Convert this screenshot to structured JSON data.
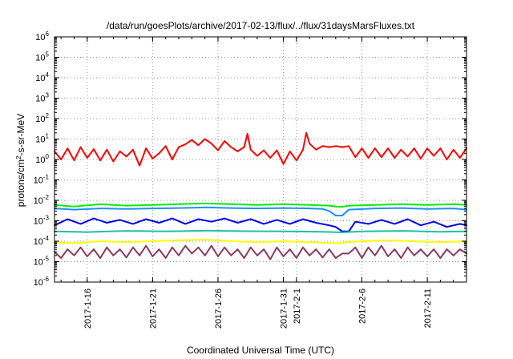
{
  "chart_data": {
    "type": "line",
    "title": "/data/run/goesPlots/archive/2017-02-13/flux/../flux/31daysMarsFluxes.txt",
    "xlabel": "Coordinated Universal Time (UTC)",
    "ylabel": {
      "pre": "protons/cm",
      "sup": "2",
      "post": "-s-sr-MeV"
    },
    "xlim": [
      "2017-01-13T12:00",
      "2017-02-14T00:00"
    ],
    "ylim": [
      1e-06,
      1000000.0
    ],
    "yscale": "log",
    "grid": true,
    "x_ticks": [
      {
        "date": "2017-01-16",
        "label": "2017-1-16"
      },
      {
        "date": "2017-01-21",
        "label": "2017-1-21"
      },
      {
        "date": "2017-01-26",
        "label": "2017-1-26"
      },
      {
        "date": "2017-01-31",
        "label": "2017-1-31"
      },
      {
        "date": "2017-02-01",
        "label": "2017-2-1"
      },
      {
        "date": "2017-02-06",
        "label": "2017-2-6"
      },
      {
        "date": "2017-02-11",
        "label": "2017-2-11"
      }
    ],
    "y_ticks": [
      {
        "value": 1e-06,
        "base": "10",
        "exp": "-6"
      },
      {
        "value": 1e-05,
        "base": "10",
        "exp": "-5"
      },
      {
        "value": 0.0001,
        "base": "10",
        "exp": "-4"
      },
      {
        "value": 0.001,
        "base": "10",
        "exp": "-3"
      },
      {
        "value": 0.01,
        "base": "10",
        "exp": "-2"
      },
      {
        "value": 0.1,
        "base": "10",
        "exp": "-1"
      },
      {
        "value": 1,
        "base": "10",
        "exp": "0"
      },
      {
        "value": 10.0,
        "base": "10",
        "exp": "1"
      },
      {
        "value": 100.0,
        "base": "10",
        "exp": "2"
      },
      {
        "value": 1000.0,
        "base": "10",
        "exp": "3"
      },
      {
        "value": 10000.0,
        "base": "10",
        "exp": "4"
      },
      {
        "value": 100000.0,
        "base": "10",
        "exp": "5"
      },
      {
        "value": 1000000.0,
        "base": "10",
        "exp": "6"
      }
    ],
    "series": [
      {
        "color": "#ff0000",
        "x": [
          "2017-01-13T12:00",
          "2017-01-14T00:00",
          "2017-01-14T12:00",
          "2017-01-15T00:00",
          "2017-01-15T12:00",
          "2017-01-16T00:00",
          "2017-01-16T12:00",
          "2017-01-17T00:00",
          "2017-01-17T12:00",
          "2017-01-18T00:00",
          "2017-01-18T12:00",
          "2017-01-19T00:00",
          "2017-01-19T12:00",
          "2017-01-20T00:00",
          "2017-01-20T12:00",
          "2017-01-21T00:00",
          "2017-01-21T12:00",
          "2017-01-22T00:00",
          "2017-01-22T12:00",
          "2017-01-23T00:00",
          "2017-01-23T12:00",
          "2017-01-24T00:00",
          "2017-01-24T12:00",
          "2017-01-25T00:00",
          "2017-01-25T12:00",
          "2017-01-26T00:00",
          "2017-01-26T12:00",
          "2017-01-27T00:00",
          "2017-01-27T12:00",
          "2017-01-28T00:00",
          "2017-01-28T06:00",
          "2017-01-28T12:00",
          "2017-01-29T00:00",
          "2017-01-29T12:00",
          "2017-01-30T00:00",
          "2017-01-30T12:00",
          "2017-01-31T00:00",
          "2017-01-31T12:00",
          "2017-02-01T00:00",
          "2017-02-01T12:00",
          "2017-02-01T18:00",
          "2017-02-02T00:00",
          "2017-02-02T12:00",
          "2017-02-03T00:00",
          "2017-02-03T12:00",
          "2017-02-04T00:00",
          "2017-02-04T12:00",
          "2017-02-05T00:00",
          "2017-02-05T12:00",
          "2017-02-06T00:00",
          "2017-02-06T12:00",
          "2017-02-07T00:00",
          "2017-02-07T12:00",
          "2017-02-08T00:00",
          "2017-02-08T12:00",
          "2017-02-09T00:00",
          "2017-02-09T12:00",
          "2017-02-10T00:00",
          "2017-02-10T12:00",
          "2017-02-11T00:00",
          "2017-02-11T12:00",
          "2017-02-12T00:00",
          "2017-02-12T12:00",
          "2017-02-13T00:00",
          "2017-02-13T12:00",
          "2017-02-14T00:00"
        ],
        "y": [
          2.5,
          1.0,
          3.5,
          0.9,
          4.0,
          1.2,
          3.2,
          0.9,
          3.0,
          0.8,
          2.5,
          1.4,
          3.0,
          0.5,
          3.5,
          1.1,
          2.0,
          4.5,
          1.0,
          4.0,
          5.5,
          9.0,
          5.0,
          10.0,
          6.0,
          2.8,
          8.0,
          4.0,
          2.5,
          4.0,
          18.0,
          3.0,
          1.5,
          2.8,
          1.2,
          2.8,
          0.6,
          2.5,
          0.9,
          3.0,
          20.0,
          6.0,
          3.0,
          4.5,
          4.0,
          4.5,
          4.0,
          4.5,
          1.3,
          3.5,
          1.2,
          3.5,
          1.3,
          3.5,
          1.2,
          3.0,
          1.4,
          3.5,
          1.1,
          3.5,
          1.5,
          3.5,
          1.0,
          3.0,
          1.2,
          3.5
        ]
      },
      {
        "color": "#00ee00",
        "x": [
          "2017-01-13T12:00",
          "2017-01-15T00:00",
          "2017-01-17T00:00",
          "2017-01-19T00:00",
          "2017-01-21T00:00",
          "2017-01-23T00:00",
          "2017-01-25T00:00",
          "2017-01-27T00:00",
          "2017-01-29T00:00",
          "2017-01-31T00:00",
          "2017-02-02T00:00",
          "2017-02-03T12:00",
          "2017-02-04T00:00",
          "2017-02-04T12:00",
          "2017-02-05T00:00",
          "2017-02-07T00:00",
          "2017-02-09T00:00",
          "2017-02-11T00:00",
          "2017-02-13T00:00",
          "2017-02-14T00:00"
        ],
        "y": [
          0.006,
          0.005,
          0.0065,
          0.0055,
          0.006,
          0.0065,
          0.007,
          0.0065,
          0.006,
          0.0065,
          0.006,
          0.0055,
          0.005,
          0.0048,
          0.0055,
          0.006,
          0.0065,
          0.006,
          0.0065,
          0.006
        ]
      },
      {
        "color": "#1e90ff",
        "x": [
          "2017-01-13T12:00",
          "2017-01-15T00:00",
          "2017-01-17T00:00",
          "2017-01-19T00:00",
          "2017-01-21T00:00",
          "2017-01-23T00:00",
          "2017-01-25T00:00",
          "2017-01-27T00:00",
          "2017-01-29T00:00",
          "2017-01-31T00:00",
          "2017-02-02T00:00",
          "2017-02-03T00:00",
          "2017-02-03T12:00",
          "2017-02-04T00:00",
          "2017-02-04T12:00",
          "2017-02-05T00:00",
          "2017-02-07T00:00",
          "2017-02-09T00:00",
          "2017-02-11T00:00",
          "2017-02-13T00:00",
          "2017-02-14T00:00"
        ],
        "y": [
          0.004,
          0.0035,
          0.004,
          0.0038,
          0.004,
          0.0042,
          0.0045,
          0.0042,
          0.004,
          0.0042,
          0.004,
          0.0038,
          0.003,
          0.0018,
          0.0018,
          0.0035,
          0.004,
          0.0042,
          0.0038,
          0.004,
          0.0035
        ]
      },
      {
        "color": "#0000ee",
        "x": [
          "2017-01-13T12:00",
          "2017-01-14T12:00",
          "2017-01-15T12:00",
          "2017-01-16T12:00",
          "2017-01-17T12:00",
          "2017-01-18T12:00",
          "2017-01-19T12:00",
          "2017-01-20T12:00",
          "2017-01-21T12:00",
          "2017-01-22T12:00",
          "2017-01-23T12:00",
          "2017-01-24T12:00",
          "2017-01-25T12:00",
          "2017-01-26T12:00",
          "2017-01-27T12:00",
          "2017-01-28T12:00",
          "2017-01-29T12:00",
          "2017-01-30T12:00",
          "2017-01-31T12:00",
          "2017-02-01T12:00",
          "2017-02-02T12:00",
          "2017-02-03T12:00",
          "2017-02-04T00:00",
          "2017-02-04T12:00",
          "2017-02-05T00:00",
          "2017-02-05T12:00",
          "2017-02-06T12:00",
          "2017-02-07T12:00",
          "2017-02-08T12:00",
          "2017-02-09T12:00",
          "2017-02-10T12:00",
          "2017-02-11T12:00",
          "2017-02-12T12:00",
          "2017-02-13T12:00",
          "2017-02-14T00:00"
        ],
        "y": [
          0.0006,
          0.0012,
          0.0007,
          0.0013,
          0.0008,
          0.0011,
          0.0007,
          0.0012,
          0.0008,
          0.0013,
          0.0007,
          0.0012,
          0.0009,
          0.0013,
          0.0008,
          0.0012,
          0.0007,
          0.0011,
          0.0007,
          0.0012,
          0.0008,
          0.0006,
          0.0005,
          0.0003,
          0.0003,
          0.0009,
          0.0007,
          0.0011,
          0.0007,
          0.0012,
          0.0006,
          0.0009,
          0.0005,
          0.0007,
          0.0006
        ]
      },
      {
        "color": "#20c0a0",
        "x": [
          "2017-01-13T12:00",
          "2017-01-16T00:00",
          "2017-01-19T00:00",
          "2017-01-22T00:00",
          "2017-01-25T00:00",
          "2017-01-28T00:00",
          "2017-01-31T00:00",
          "2017-02-03T00:00",
          "2017-02-04T12:00",
          "2017-02-06T00:00",
          "2017-02-09T00:00",
          "2017-02-12T00:00",
          "2017-02-14T00:00"
        ],
        "y": [
          0.0003,
          0.00028,
          0.00032,
          0.0003,
          0.00033,
          0.00031,
          0.0003,
          0.00029,
          0.00027,
          0.0003,
          0.00032,
          0.00029,
          0.0003
        ]
      },
      {
        "color": "#ffff00",
        "x": [
          "2017-01-13T12:00",
          "2017-01-15T00:00",
          "2017-01-17T00:00",
          "2017-01-19T00:00",
          "2017-01-21T00:00",
          "2017-01-23T00:00",
          "2017-01-25T00:00",
          "2017-01-27T00:00",
          "2017-01-29T00:00",
          "2017-01-31T00:00",
          "2017-02-02T00:00",
          "2017-02-04T00:00",
          "2017-02-06T00:00",
          "2017-02-08T00:00",
          "2017-02-10T00:00",
          "2017-02-12T00:00",
          "2017-02-14T00:00"
        ],
        "y": [
          9e-05,
          8e-05,
          0.0001,
          9e-05,
          0.0001,
          0.00011,
          0.00012,
          0.0001,
          9e-05,
          0.0001,
          9e-05,
          8e-05,
          0.0001,
          0.00011,
          0.0001,
          9e-05,
          0.0001
        ]
      },
      {
        "color": "#8b3a62",
        "x": [
          "2017-01-13T12:00",
          "2017-01-14T00:00",
          "2017-01-14T12:00",
          "2017-01-15T00:00",
          "2017-01-15T12:00",
          "2017-01-16T00:00",
          "2017-01-16T12:00",
          "2017-01-17T00:00",
          "2017-01-17T12:00",
          "2017-01-18T00:00",
          "2017-01-18T12:00",
          "2017-01-19T00:00",
          "2017-01-19T12:00",
          "2017-01-20T00:00",
          "2017-01-20T12:00",
          "2017-01-21T00:00",
          "2017-01-21T12:00",
          "2017-01-22T00:00",
          "2017-01-22T12:00",
          "2017-01-23T00:00",
          "2017-01-23T12:00",
          "2017-01-24T00:00",
          "2017-01-24T12:00",
          "2017-01-25T00:00",
          "2017-01-25T12:00",
          "2017-01-26T00:00",
          "2017-01-26T12:00",
          "2017-01-27T00:00",
          "2017-01-27T12:00",
          "2017-01-28T00:00",
          "2017-01-28T12:00",
          "2017-01-29T00:00",
          "2017-01-29T12:00",
          "2017-01-30T00:00",
          "2017-01-30T12:00",
          "2017-01-31T00:00",
          "2017-01-31T12:00",
          "2017-02-01T00:00",
          "2017-02-01T12:00",
          "2017-02-02T00:00",
          "2017-02-02T12:00",
          "2017-02-03T00:00",
          "2017-02-03T12:00",
          "2017-02-04T00:00",
          "2017-02-04T12:00",
          "2017-02-05T00:00",
          "2017-02-05T12:00",
          "2017-02-06T00:00",
          "2017-02-06T12:00",
          "2017-02-07T00:00",
          "2017-02-07T12:00",
          "2017-02-08T00:00",
          "2017-02-08T12:00",
          "2017-02-09T00:00",
          "2017-02-09T12:00",
          "2017-02-10T00:00",
          "2017-02-10T12:00",
          "2017-02-11T00:00",
          "2017-02-11T12:00",
          "2017-02-12T00:00",
          "2017-02-12T12:00",
          "2017-02-13T00:00",
          "2017-02-13T12:00",
          "2017-02-14T00:00"
        ],
        "y": [
          3e-05,
          1.5e-05,
          4e-05,
          2e-05,
          5e-05,
          1.8e-05,
          4e-05,
          1.5e-05,
          5e-05,
          2e-05,
          4e-05,
          1.6e-05,
          5e-05,
          2e-05,
          6e-05,
          1.8e-05,
          4e-05,
          1.5e-05,
          5e-05,
          2e-05,
          6e-05,
          2.5e-05,
          5e-05,
          2e-05,
          6e-05,
          1.8e-05,
          5e-05,
          2e-05,
          4e-05,
          1.5e-05,
          5e-05,
          2e-05,
          4e-05,
          1.3e-05,
          5e-05,
          1.8e-05,
          4e-05,
          1.5e-05,
          5e-05,
          2e-05,
          4e-05,
          1.6e-05,
          4e-05,
          1.5e-05,
          2.5e-05,
          2.5e-05,
          5e-05,
          1.5e-05,
          5e-05,
          2e-05,
          6e-05,
          1.8e-05,
          4e-05,
          1.5e-05,
          5e-05,
          2e-05,
          4e-05,
          1.8e-05,
          4e-05,
          1.5e-05,
          4e-05,
          2e-05,
          4e-05,
          2.5e-05
        ]
      }
    ]
  }
}
